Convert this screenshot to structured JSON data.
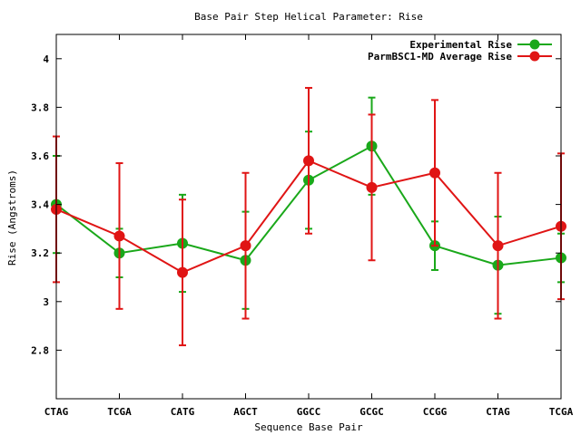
{
  "chart_data": {
    "type": "line",
    "title": "Base Pair Step Helical Parameter: Rise",
    "xlabel": "Sequence Base Pair",
    "ylabel": "Rise (Angstroms)",
    "categories": [
      "CTAG",
      "TCGA",
      "CATG",
      "AGCT",
      "GGCC",
      "GCGC",
      "CCGG",
      "CTAG",
      "TCGA"
    ],
    "ylim": [
      2.6,
      4.1
    ],
    "yticks": [
      2.8,
      3,
      3.2,
      3.4,
      3.6,
      3.8,
      4
    ],
    "ytick_labels": [
      "2.8",
      "3",
      "3.2",
      "3.4",
      "3.6",
      "3.8",
      "4"
    ],
    "grid": false,
    "legend_position": "top-right",
    "series": [
      {
        "name": "Experimental Rise",
        "color": "#1aa81a",
        "values": [
          3.4,
          3.2,
          3.24,
          3.17,
          3.5,
          3.64,
          3.23,
          3.15,
          3.18
        ],
        "error_low": [
          3.2,
          3.1,
          3.04,
          2.97,
          3.3,
          3.44,
          3.13,
          2.95,
          3.08
        ],
        "error_high": [
          3.6,
          3.3,
          3.44,
          3.37,
          3.7,
          3.84,
          3.33,
          3.35,
          3.28
        ]
      },
      {
        "name": "ParmBSC1-MD Average Rise",
        "color": "#e01515",
        "values": [
          3.38,
          3.27,
          3.12,
          3.23,
          3.58,
          3.47,
          3.53,
          3.23,
          3.31
        ],
        "error_low": [
          3.08,
          2.97,
          2.82,
          2.93,
          3.28,
          3.17,
          3.23,
          2.93,
          3.01
        ],
        "error_high": [
          3.68,
          3.57,
          3.42,
          3.53,
          3.88,
          3.77,
          3.83,
          3.53,
          3.61
        ]
      }
    ]
  }
}
